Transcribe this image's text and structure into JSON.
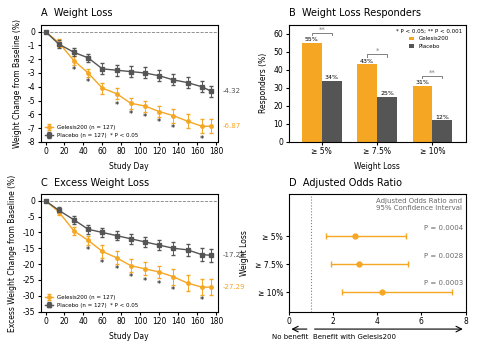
{
  "chart_data": [
    {
      "type": "line",
      "title": "A  Weight Loss",
      "x_label": "Study Day",
      "y_label": "Weight Change from Baseline (%)",
      "x": [
        0,
        14,
        30,
        45,
        60,
        75,
        90,
        105,
        120,
        135,
        150,
        165,
        175
      ],
      "series": [
        {
          "name": "Gelesis200 (n = 127)",
          "color": "#F5A623",
          "marker": "circle",
          "values": [
            0.0,
            -0.8,
            -2.1,
            -3.0,
            -4.1,
            -4.5,
            -5.2,
            -5.4,
            -5.8,
            -6.1,
            -6.5,
            -6.87,
            -6.87
          ],
          "errors": [
            0.0,
            0.3,
            0.3,
            0.3,
            0.4,
            0.4,
            0.4,
            0.4,
            0.4,
            0.5,
            0.5,
            0.5,
            0.5
          ],
          "end_label": "-6.87"
        },
        {
          "name": "Placebo (n = 127)  * P < 0.05",
          "color": "#555555",
          "marker": "square",
          "values": [
            0.0,
            -0.9,
            -1.5,
            -1.9,
            -2.7,
            -2.8,
            -2.9,
            -3.0,
            -3.2,
            -3.5,
            -3.7,
            -4.0,
            -4.32
          ],
          "errors": [
            0.0,
            0.3,
            0.3,
            0.3,
            0.4,
            0.4,
            0.4,
            0.4,
            0.4,
            0.4,
            0.4,
            0.4,
            0.4
          ],
          "end_label": "-4.32"
        }
      ],
      "significance": {
        "label": "*",
        "x": [
          30,
          45,
          75,
          90,
          105,
          120,
          135,
          165
        ]
      },
      "reference_line": 0,
      "xlim": [
        -5,
        182
      ],
      "ylim": [
        -8,
        0.5
      ],
      "xticks": [
        0,
        20,
        40,
        60,
        80,
        100,
        120,
        140,
        160,
        180
      ],
      "yticks": [
        0,
        -1,
        -2,
        -3,
        -4,
        -5,
        -6,
        -7,
        -8
      ],
      "legend": "lower left"
    },
    {
      "type": "bar",
      "title": "B  Weight Loss Responders",
      "x_label": "Weight Loss",
      "y_label": "Responders (%)",
      "categories": [
        "≥ 5%",
        "≥ 7.5%",
        "≥ 10%"
      ],
      "series": [
        {
          "name": "Gelesis200",
          "color": "#F5A623",
          "values": [
            55,
            43,
            31
          ],
          "value_labels": [
            "55%",
            "43%",
            "31%"
          ]
        },
        {
          "name": "Placebo",
          "color": "#555555",
          "values": [
            34,
            25,
            12
          ],
          "value_labels": [
            "34%",
            "25%",
            "12%"
          ]
        }
      ],
      "data_labels": true,
      "significance": [
        "**",
        "*",
        "**"
      ],
      "ylim": [
        0,
        65
      ],
      "yticks": [
        0,
        10,
        20,
        30,
        40,
        50,
        60
      ],
      "legend": "upper right",
      "legend_title": "* P < 0.05; ** P < 0.001"
    },
    {
      "type": "line",
      "title": "C  Excess Weight Loss",
      "x_label": "Study Day",
      "y_label": "Excess Weight Change from Baseline (%)",
      "x": [
        0,
        14,
        30,
        45,
        60,
        75,
        90,
        105,
        120,
        135,
        150,
        165,
        175
      ],
      "series": [
        {
          "name": "Gelesis200 (n = 127)",
          "color": "#F5A623",
          "marker": "circle",
          "values": [
            0.0,
            -3.5,
            -9.5,
            -12.5,
            -16.0,
            -18.0,
            -20.5,
            -21.5,
            -22.5,
            -24.0,
            -26.0,
            -27.29,
            -27.29
          ],
          "errors": [
            0.0,
            1.0,
            1.2,
            1.5,
            2.0,
            2.0,
            2.0,
            2.0,
            2.0,
            2.5,
            2.5,
            2.5,
            2.5
          ],
          "end_label": "-27.29"
        },
        {
          "name": "Placebo (n = 127)  * P < 0.05",
          "color": "#555555",
          "marker": "square",
          "values": [
            0.0,
            -3.0,
            -6.0,
            -9.0,
            -10.0,
            -11.0,
            -12.0,
            -13.0,
            -14.0,
            -15.0,
            -15.5,
            -17.0,
            -17.24
          ],
          "errors": [
            0.0,
            1.0,
            1.2,
            1.5,
            1.5,
            1.5,
            1.5,
            1.5,
            1.5,
            2.0,
            2.0,
            2.0,
            2.0
          ],
          "end_label": "-17.24"
        }
      ],
      "significance": {
        "label": "*",
        "x": [
          45,
          60,
          75,
          90,
          105,
          120,
          135,
          165
        ]
      },
      "reference_line": 0,
      "xlim": [
        -5,
        182
      ],
      "ylim": [
        -35,
        2
      ],
      "xticks": [
        0,
        20,
        40,
        60,
        80,
        100,
        120,
        140,
        160,
        180
      ],
      "yticks": [
        0,
        -5,
        -10,
        -15,
        -20,
        -25,
        -30,
        -35
      ],
      "legend": "lower left"
    },
    {
      "type": "forest",
      "title": "D  Adjusted Odds Ratio",
      "subtitle": "Adjusted Odds Ratio and\n95% Confidence Interval",
      "y_label": "Weight Loss",
      "categories": [
        "≥ 5%",
        "≥ 7.5%",
        "≥ 10%"
      ],
      "values": [
        3.0,
        3.2,
        4.2
      ],
      "ci_low": [
        1.7,
        1.9,
        2.4
      ],
      "ci_high": [
        5.3,
        5.4,
        7.4
      ],
      "p_values": [
        "P = 0.0004",
        "P = 0.0028",
        "P = 0.0003"
      ],
      "color": "#F5A623",
      "reference_line": 1,
      "xlim": [
        0,
        8
      ],
      "xticks": [
        0,
        2,
        4,
        6,
        8
      ],
      "no_benefit_label": "No benefit",
      "benefit_label": "Benefit with Gelesis200"
    }
  ]
}
